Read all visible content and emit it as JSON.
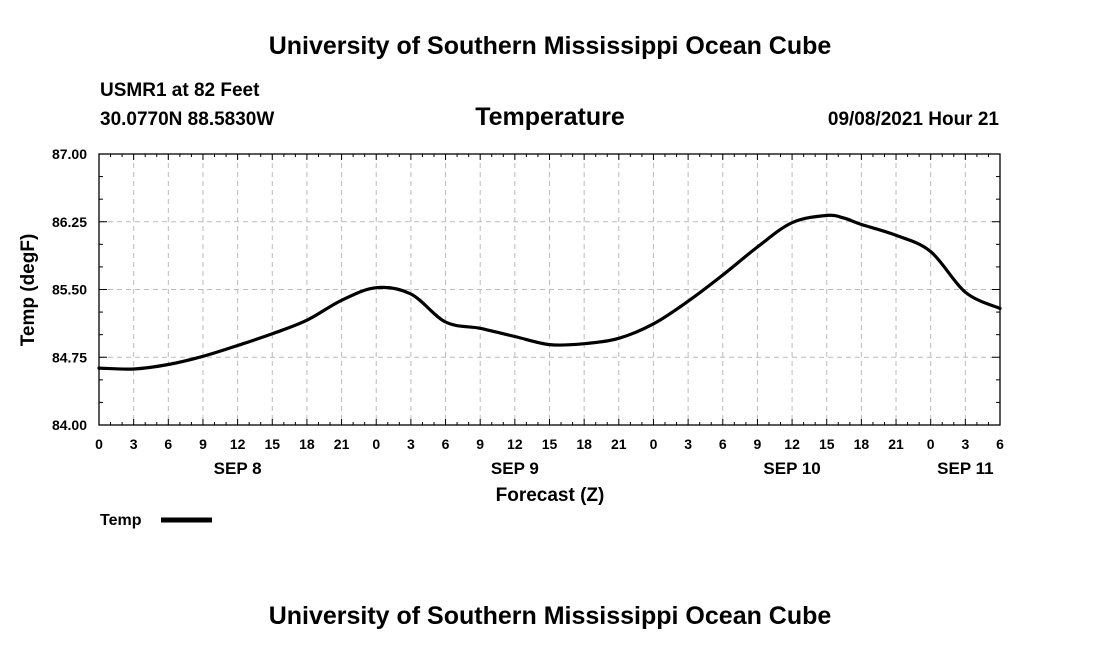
{
  "header": {
    "title_top": "University of Southern Mississippi Ocean Cube",
    "station": "USMR1 at 82 Feet",
    "coords": "30.0770N  88.5830W",
    "timestamp": "09/08/2021 Hour 21",
    "title_bottom": "University of Southern Mississippi Ocean Cube"
  },
  "colors": {
    "line": "#000000",
    "grid": "#bbbbbb",
    "frame": "#000000"
  },
  "chart_data": {
    "type": "line",
    "title": "Temperature",
    "xlabel": "Forecast (Z)",
    "ylabel": "Temp (degF)",
    "ylim": [
      84.0,
      87.0
    ],
    "xlim": [
      0,
      78
    ],
    "grid": true,
    "y_ticks": [
      "84.00",
      "84.75",
      "85.50",
      "86.25",
      "87.00"
    ],
    "x_tick_labels": [
      "0",
      "3",
      "6",
      "9",
      "12",
      "15",
      "18",
      "21",
      "0",
      "3",
      "6",
      "9",
      "12",
      "15",
      "18",
      "21",
      "0",
      "3",
      "6",
      "9",
      "12",
      "15",
      "18",
      "21",
      "0",
      "3",
      "6"
    ],
    "day_labels": [
      {
        "label": "SEP 8",
        "hour": 12
      },
      {
        "label": "SEP 9",
        "hour": 36
      },
      {
        "label": "SEP 10",
        "hour": 60
      },
      {
        "label": "SEP 11",
        "hour": 75
      }
    ],
    "legend": [
      {
        "name": "Temp",
        "placement": "bottom-left"
      }
    ],
    "series": [
      {
        "name": "Temp",
        "x": [
          0,
          3,
          6,
          9,
          12,
          15,
          18,
          21,
          24,
          27,
          30,
          33,
          36,
          39,
          42,
          45,
          48,
          51,
          54,
          57,
          60,
          63,
          64.5,
          66,
          69,
          72,
          75,
          78
        ],
        "values": [
          84.63,
          84.62,
          84.67,
          84.76,
          84.88,
          85.01,
          85.16,
          85.38,
          85.52,
          85.45,
          85.14,
          85.07,
          84.98,
          84.89,
          84.9,
          84.96,
          85.12,
          85.37,
          85.66,
          85.97,
          86.24,
          86.32,
          86.29,
          86.22,
          86.1,
          85.92,
          85.47,
          85.29
        ]
      }
    ]
  }
}
